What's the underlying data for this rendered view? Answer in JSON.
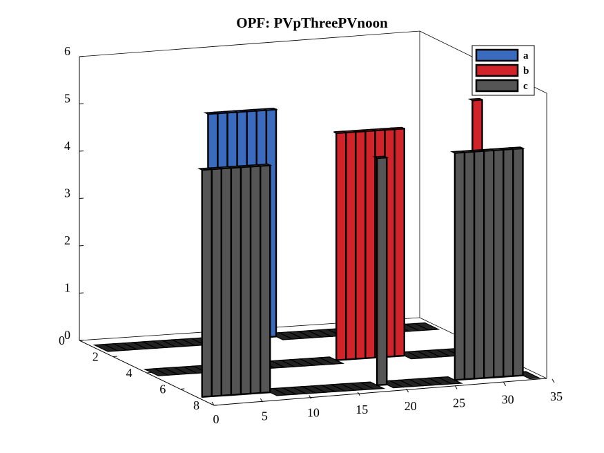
{
  "chart_data": {
    "type": "bar3",
    "title": "OPF: PVpThreePVnoon",
    "x_ticks": [
      "0",
      "5",
      "10",
      "15",
      "20",
      "25",
      "30",
      "35"
    ],
    "y_ticks": [
      "0",
      "2",
      "4",
      "6",
      "8"
    ],
    "z_ticks": [
      "0",
      "1",
      "2",
      "3",
      "4",
      "5",
      "6"
    ],
    "xlim": [
      0,
      35
    ],
    "ylim": [
      0,
      8
    ],
    "zlim": [
      0,
      6
    ],
    "legend_position": "top-right",
    "colors": {
      "a": "#3a6bbf",
      "b": "#d0232a",
      "c": "#555555"
    },
    "series": [
      {
        "name": "a",
        "values": [
          0,
          0,
          0,
          0,
          0,
          0,
          0,
          0,
          0,
          0,
          0,
          4.8,
          4.8,
          4.8,
          4.8,
          4.8,
          4.8,
          4.8,
          0,
          0,
          0,
          0,
          0,
          0,
          0,
          0,
          0,
          0,
          0,
          0,
          0,
          0,
          0,
          0
        ]
      },
      {
        "name": "b",
        "values": [
          0,
          0,
          0,
          0,
          0,
          0,
          0,
          0,
          0,
          0,
          0,
          0,
          0,
          0,
          0,
          0,
          0,
          0,
          0,
          4.8,
          4.8,
          4.8,
          4.8,
          4.8,
          4.8,
          4.8,
          0,
          0,
          0,
          0,
          0,
          0,
          0,
          5.3
        ]
      },
      {
        "name": "c",
        "values": [
          4.8,
          4.8,
          4.8,
          4.8,
          4.8,
          4.8,
          4.8,
          0,
          0,
          0,
          0,
          0,
          0,
          0,
          0,
          0,
          0,
          0,
          4.8,
          0,
          0,
          0,
          0,
          0,
          0,
          0,
          4.8,
          4.8,
          4.8,
          4.8,
          4.8,
          4.8,
          4.8,
          0
        ]
      }
    ]
  }
}
